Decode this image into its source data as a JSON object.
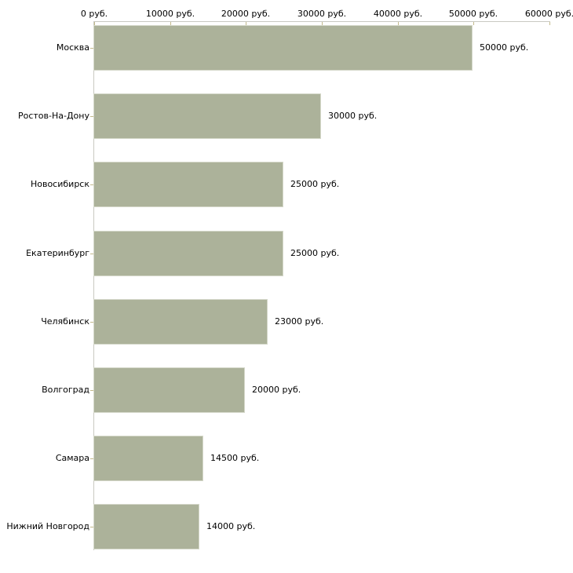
{
  "chart_data": {
    "type": "bar",
    "orientation": "horizontal",
    "title": "",
    "xlabel": "",
    "ylabel": "",
    "categories": [
      "Москва",
      "Ростов-На-Дону",
      "Новосибирск",
      "Екатеринбург",
      "Челябинск",
      "Волгоград",
      "Самара",
      "Нижний Новгород"
    ],
    "values": [
      50000,
      30000,
      25000,
      25000,
      23000,
      20000,
      14500,
      14000
    ],
    "value_labels": [
      "50000 руб.",
      "30000 руб.",
      "25000 руб.",
      "25000 руб.",
      "23000 руб.",
      "20000 руб.",
      "14500 руб.",
      "14000 руб."
    ],
    "x_ticks": [
      0,
      10000,
      20000,
      30000,
      40000,
      50000,
      60000
    ],
    "x_tick_labels": [
      "0 руб.",
      "10000 руб.",
      "20000 руб.",
      "30000 руб.",
      "40000 руб.",
      "50000 руб.",
      "60000 руб."
    ],
    "xlim": [
      0,
      60000
    ],
    "axis_position": "top",
    "grid": false,
    "legend": false,
    "colors": {
      "bar_fill": "#acb29a",
      "bar_border": "#d5d8ca",
      "axis_line": "#c9c9c2",
      "tick_mark": "#c3ba8c",
      "text": "#000000",
      "background": "#ffffff"
    }
  }
}
